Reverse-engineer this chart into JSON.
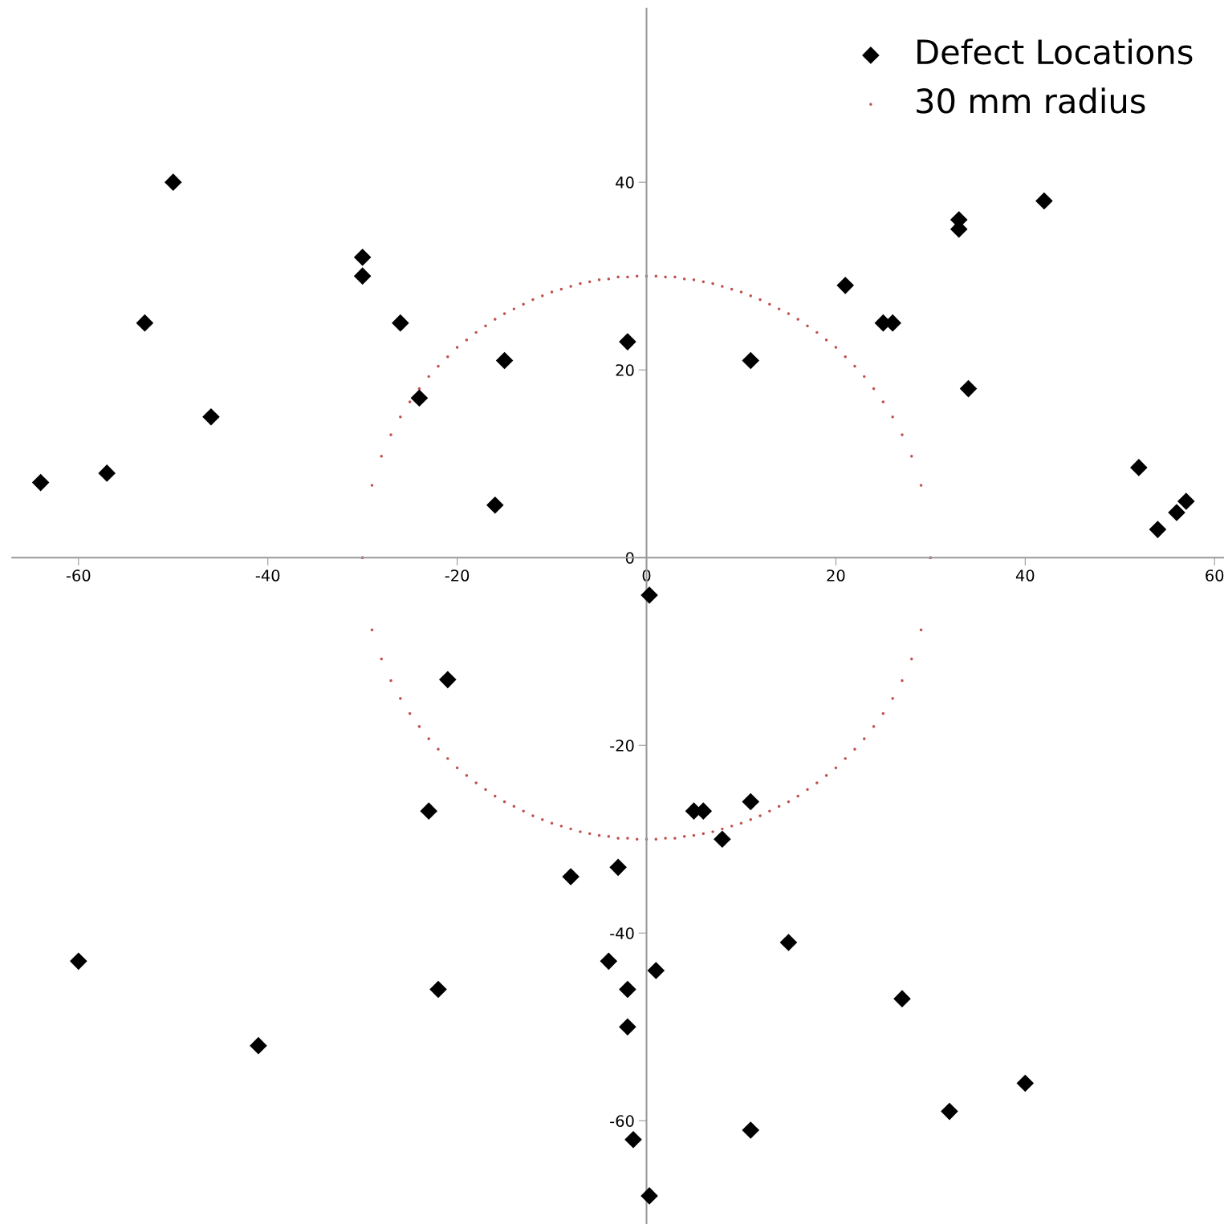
{
  "chart_data": {
    "type": "scatter",
    "xlim": [
      -67,
      61
    ],
    "ylim": [
      -71,
      58.5
    ],
    "xticks": [
      -60,
      -40,
      -20,
      0,
      20,
      40,
      60
    ],
    "yticks": [
      -60,
      -40,
      -20,
      0,
      20,
      40
    ],
    "grid": false,
    "legend": "top right",
    "series": [
      {
        "name": "Defect Locations",
        "color": "#000000",
        "marker": "diamond",
        "x": [
          -50,
          -64,
          -57,
          -53,
          -46,
          -30,
          -30,
          -26,
          -24,
          -15,
          -16,
          -2,
          21,
          25,
          26,
          11,
          33,
          33,
          42,
          34,
          52,
          54,
          56,
          57,
          0.3,
          -21,
          -23,
          5,
          6,
          11,
          8,
          -3,
          -8,
          15,
          -60,
          -4,
          1,
          -2,
          -22,
          27,
          -2,
          -41,
          40,
          32,
          11,
          -1.4,
          0.3
        ],
        "values": [
          40,
          8,
          9,
          25,
          15,
          32,
          30,
          25,
          17,
          21,
          5.6,
          23,
          29,
          25,
          25,
          21,
          36,
          35,
          38,
          18,
          9.6,
          3,
          4.8,
          6,
          -4,
          -13,
          -27,
          -27,
          -27,
          -26,
          -30,
          -33,
          -34,
          -41,
          -43,
          -43,
          -44,
          -46,
          -46,
          -47,
          -50,
          -52,
          -56,
          -59,
          -61,
          -62,
          -68
        ]
      },
      {
        "name": "30 mm radius",
        "color": "#c0504d",
        "marker": "circle",
        "x": [
          -30,
          -29,
          -28,
          -27,
          -26,
          -25,
          -24,
          -23,
          -22,
          -21,
          -20,
          -19,
          -18,
          -17,
          -16,
          -15,
          -14,
          -13,
          -12,
          -11,
          -10,
          -9,
          -8,
          -7,
          -6,
          -5,
          -4,
          -3,
          -2,
          -1,
          0,
          1,
          2,
          3,
          4,
          5,
          6,
          7,
          8,
          9,
          10,
          11,
          12,
          13,
          14,
          15,
          16,
          17,
          18,
          19,
          20,
          21,
          22,
          23,
          24,
          25,
          26,
          27,
          28,
          29,
          30,
          30,
          29,
          28,
          27,
          26,
          25,
          24,
          23,
          22,
          21,
          20,
          19,
          18,
          17,
          16,
          15,
          14,
          13,
          12,
          11,
          10,
          9,
          8,
          7,
          6,
          5,
          4,
          3,
          2,
          1,
          0,
          -1,
          -2,
          -3,
          -4,
          -5,
          -6,
          -7,
          -8,
          -9,
          -10,
          -11,
          -12,
          -13,
          -14,
          -15,
          -16,
          -17,
          -18,
          -19,
          -20,
          -21,
          -22,
          -23,
          -24,
          -25,
          -26,
          -27,
          -28,
          -29,
          -30
        ],
        "values": [
          0,
          7.7,
          10.8,
          13.1,
          15.0,
          16.6,
          18.0,
          19.3,
          20.4,
          21.4,
          22.4,
          23.2,
          24.0,
          24.7,
          25.4,
          26.0,
          26.5,
          27.0,
          27.5,
          27.9,
          28.3,
          28.6,
          28.9,
          29.2,
          29.4,
          29.6,
          29.7,
          29.9,
          29.9,
          30.0,
          30,
          30.0,
          29.9,
          29.9,
          29.7,
          29.6,
          29.4,
          29.2,
          28.9,
          28.6,
          28.3,
          27.9,
          27.5,
          27.0,
          26.5,
          26.0,
          25.4,
          24.7,
          24.0,
          23.2,
          22.4,
          21.4,
          20.4,
          19.3,
          18.0,
          16.6,
          15.0,
          13.1,
          10.8,
          7.7,
          0,
          0,
          -7.7,
          -10.8,
          -13.1,
          -15.0,
          -16.6,
          -18.0,
          -19.3,
          -20.4,
          -21.4,
          -22.4,
          -23.2,
          -24.0,
          -24.7,
          -25.4,
          -26.0,
          -26.5,
          -27.0,
          -27.5,
          -27.9,
          -28.3,
          -28.6,
          -28.9,
          -29.2,
          -29.4,
          -29.6,
          -29.7,
          -29.9,
          -29.9,
          -30.0,
          -30,
          -30.0,
          -29.9,
          -29.9,
          -29.7,
          -29.6,
          -29.4,
          -29.2,
          -28.9,
          -28.6,
          -28.3,
          -27.9,
          -27.5,
          -27.0,
          -26.5,
          -26.0,
          -25.4,
          -24.7,
          -24.0,
          -23.2,
          -22.4,
          -21.4,
          -20.4,
          -19.3,
          -18.0,
          -16.6,
          -15.0,
          -13.1,
          -10.8,
          -7.7,
          0
        ]
      }
    ]
  }
}
